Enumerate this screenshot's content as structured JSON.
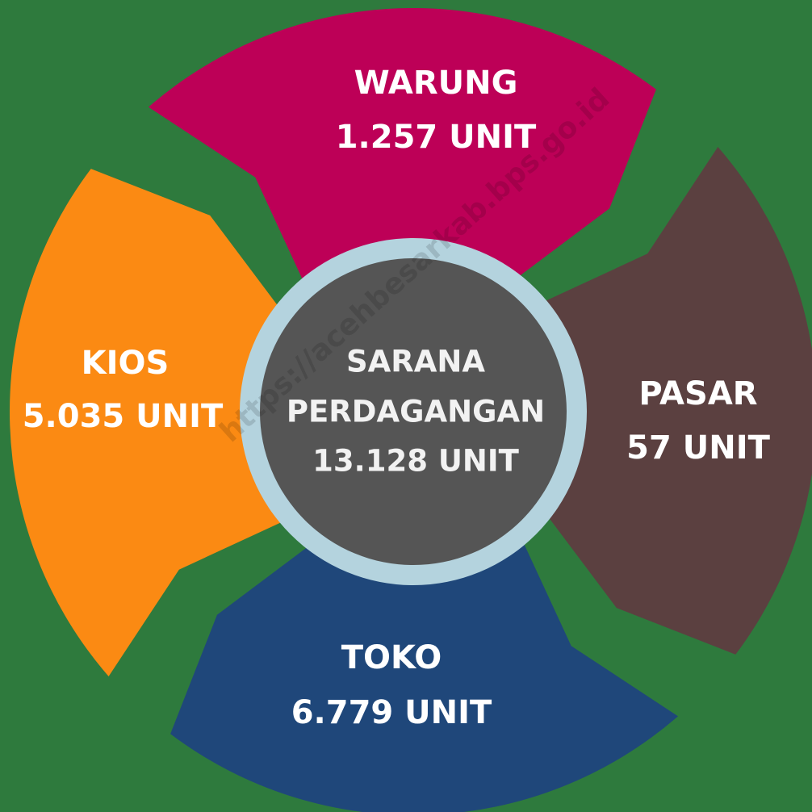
{
  "center": {
    "lines": [
      "SARANA",
      "PERDAGANGAN"
    ],
    "total": "13.128 UNIT"
  },
  "segments": [
    {
      "name": "WARUNG",
      "value": "1.257 UNIT",
      "color": "#bd0057"
    },
    {
      "name": "PASAR",
      "value": "57 UNIT",
      "color": "#5b4040"
    },
    {
      "name": "TOKO",
      "value": "6.779 UNIT",
      "color": "#1f477a"
    },
    {
      "name": "KIOS",
      "value": "5.035 UNIT",
      "color": "#fb8a13"
    }
  ],
  "watermark": "https://acehbesarkab.bps.go.id"
}
